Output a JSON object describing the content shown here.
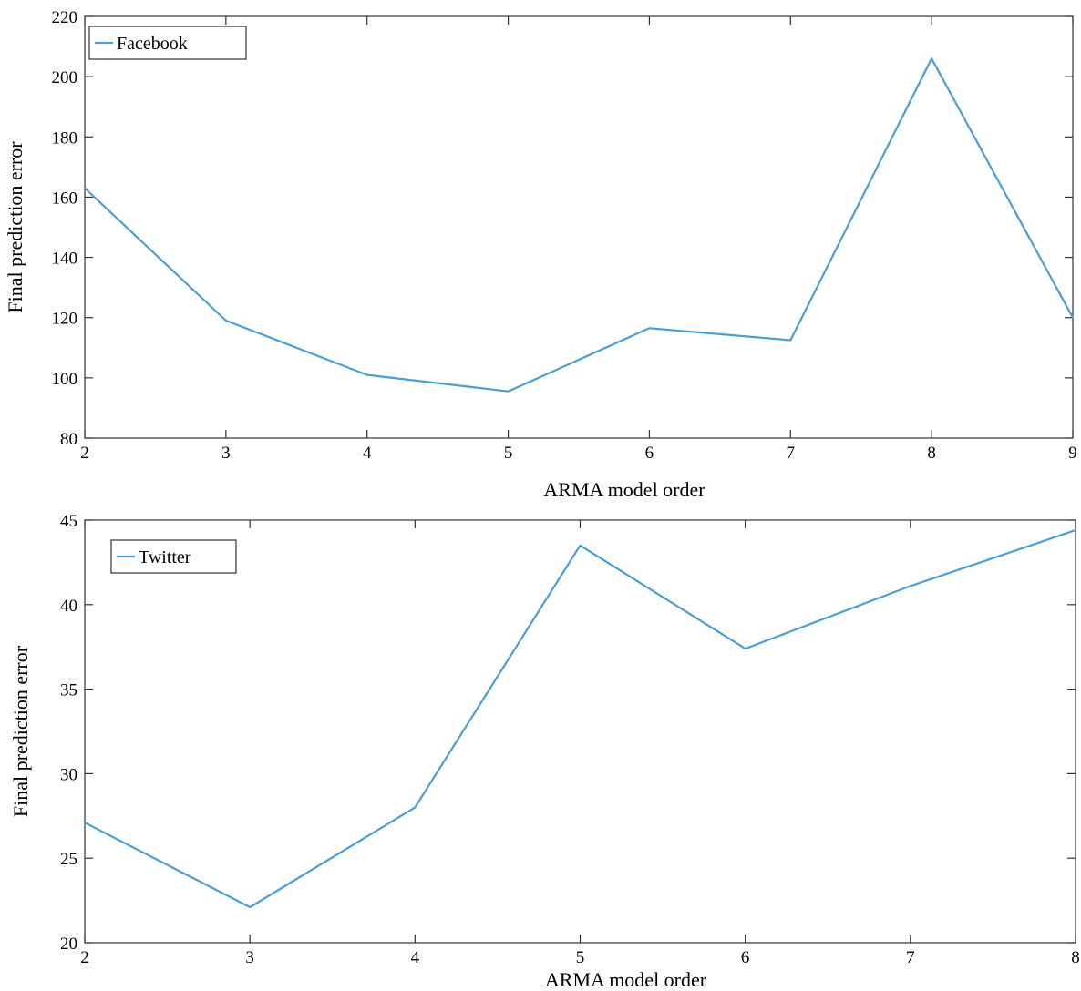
{
  "chart_data": [
    {
      "type": "line",
      "title": "",
      "xlabel": "ARMA model order",
      "ylabel": "Final prediction error",
      "xlim": [
        2,
        9
      ],
      "ylim": [
        80,
        220
      ],
      "x_ticks": [
        2,
        3,
        4,
        5,
        6,
        7,
        8,
        9
      ],
      "y_ticks": [
        80,
        100,
        120,
        140,
        160,
        180,
        200,
        220
      ],
      "legend_position": "top-left",
      "grid": false,
      "series": [
        {
          "name": "Facebook",
          "color": "#4a9fd6",
          "x": [
            2,
            3,
            4,
            5,
            6,
            7,
            8,
            9
          ],
          "y": [
            163,
            119,
            101,
            95.5,
            116.5,
            112.5,
            206,
            120
          ]
        }
      ]
    },
    {
      "type": "line",
      "title": "",
      "xlabel": "ARMA model order",
      "ylabel": "Final prediction error",
      "xlim": [
        2,
        8
      ],
      "ylim": [
        20,
        45
      ],
      "x_ticks": [
        2,
        3,
        4,
        5,
        6,
        7,
        8
      ],
      "y_ticks": [
        20,
        25,
        30,
        35,
        40,
        45
      ],
      "legend_position": "top-left",
      "grid": false,
      "series": [
        {
          "name": "Twitter",
          "color": "#4a9fd6",
          "x": [
            2,
            3,
            4,
            5,
            6,
            7,
            8
          ],
          "y": [
            27.1,
            22.1,
            28,
            43.5,
            37.4,
            41.1,
            44.4
          ]
        }
      ]
    }
  ]
}
